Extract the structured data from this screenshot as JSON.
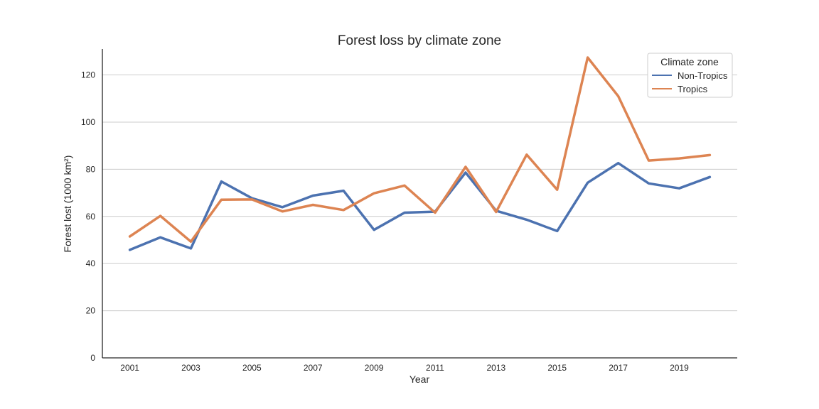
{
  "chart_data": {
    "type": "line",
    "title": "Forest loss by climate zone",
    "xlabel": "Year",
    "ylabel": "Forest lost (1000 km²)",
    "x": [
      2001,
      2002,
      2003,
      2004,
      2005,
      2006,
      2007,
      2008,
      2009,
      2010,
      2011,
      2012,
      2013,
      2014,
      2015,
      2016,
      2017,
      2018,
      2019,
      2020
    ],
    "xticks": [
      2001,
      2003,
      2005,
      2007,
      2009,
      2011,
      2013,
      2015,
      2017,
      2019
    ],
    "yticks": [
      0,
      20,
      40,
      60,
      80,
      100,
      120
    ],
    "ylim": [
      0,
      131
    ],
    "xlim": [
      2000.1,
      2020.9
    ],
    "grid": "horizontal",
    "legend": {
      "title": "Climate zone",
      "placement": "top-right"
    },
    "series": [
      {
        "name": "Non-Tropics",
        "color": "#4c72b0",
        "values": [
          45.8,
          51.1,
          46.4,
          74.8,
          67.7,
          63.9,
          68.8,
          70.9,
          54.3,
          61.6,
          62.0,
          78.6,
          62.4,
          58.6,
          53.8,
          74.3,
          82.6,
          74.0,
          71.9,
          76.7
        ]
      },
      {
        "name": "Tropics",
        "color": "#dd8452",
        "values": [
          51.5,
          60.2,
          49.3,
          67.1,
          67.2,
          62.1,
          64.9,
          62.7,
          69.8,
          73.1,
          61.6,
          81.0,
          61.9,
          86.2,
          71.3,
          127.4,
          111.0,
          83.7,
          84.6,
          86.0
        ]
      }
    ]
  }
}
